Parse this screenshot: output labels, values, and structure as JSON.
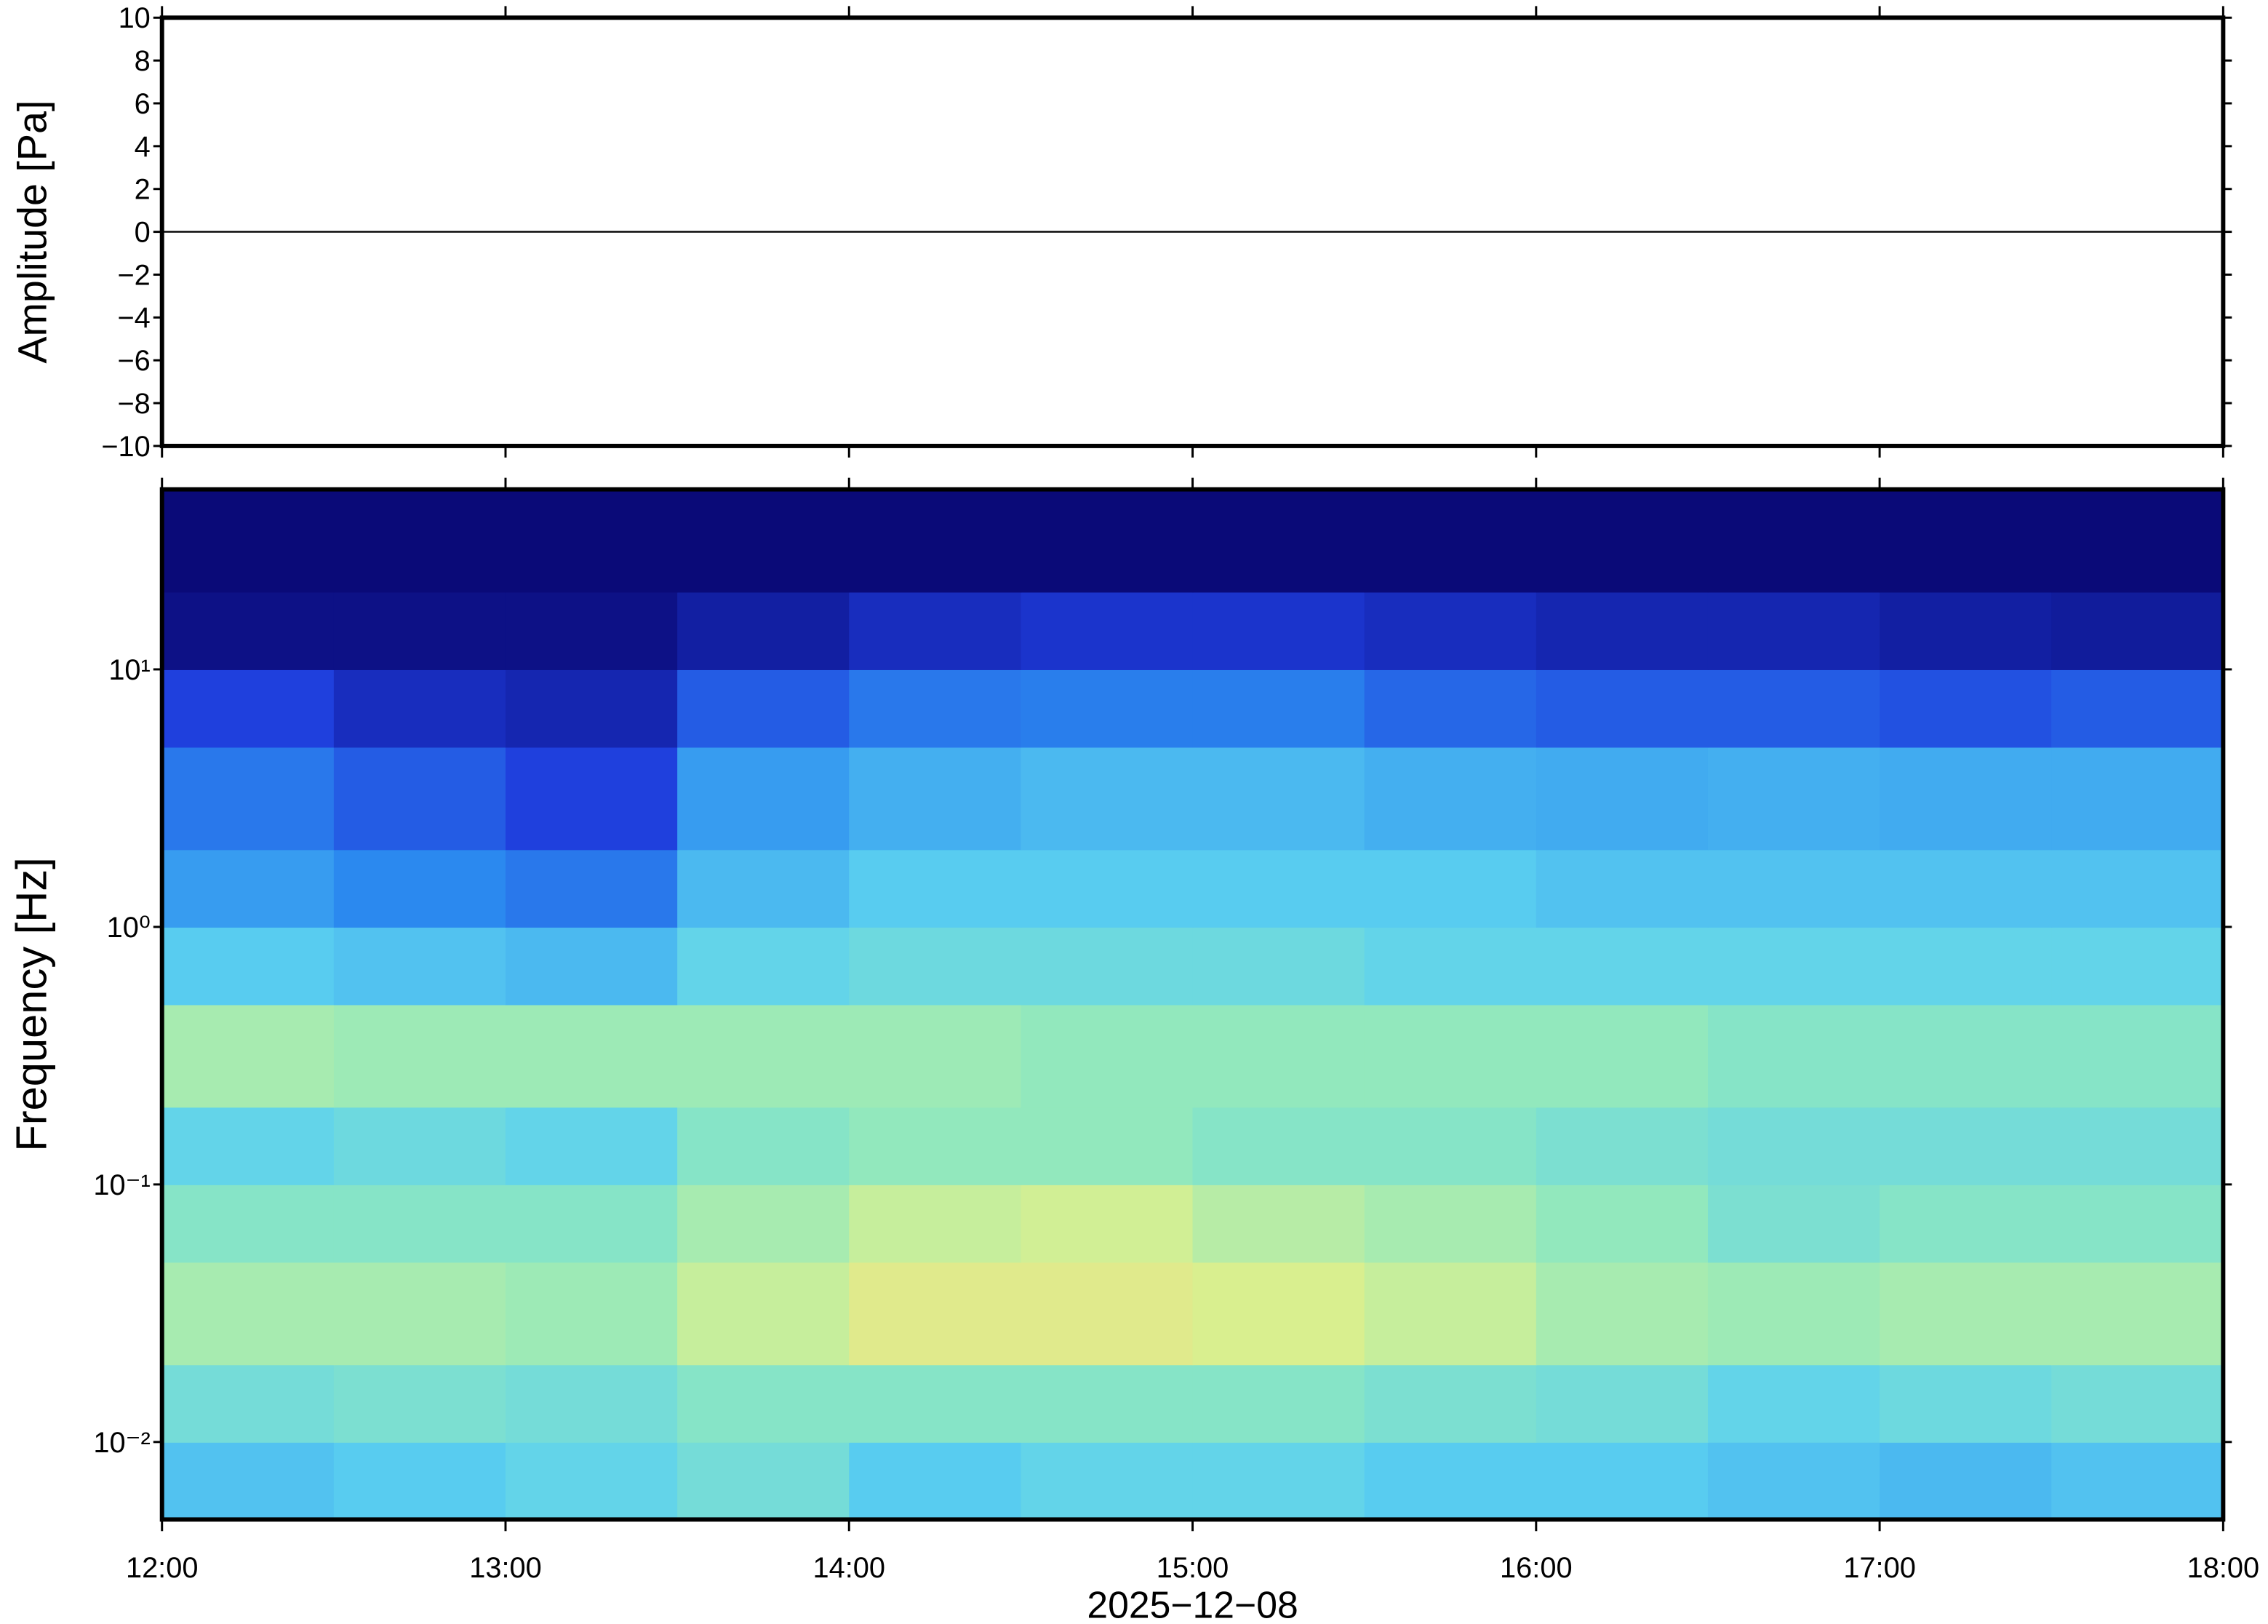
{
  "chart_data": [
    {
      "type": "line",
      "ylabel": "Amplitude [Pa]",
      "x": [
        "12:00",
        "12:30",
        "13:00",
        "13:30",
        "14:00",
        "14:30",
        "15:00",
        "15:30",
        "16:00",
        "16:30",
        "17:00",
        "17:30",
        "18:00"
      ],
      "values": [
        0,
        0,
        0,
        0,
        0,
        0,
        0,
        0,
        0,
        0,
        0,
        0,
        0
      ],
      "color": "#000000",
      "xlim": [
        "12:00",
        "18:00"
      ],
      "ylim": [
        -10,
        10
      ],
      "yticks": [
        {
          "value": -10,
          "label": "−10"
        },
        {
          "value": -8,
          "label": "−8"
        },
        {
          "value": -6,
          "label": "−6"
        },
        {
          "value": -4,
          "label": "−4"
        },
        {
          "value": -2,
          "label": "−2"
        },
        0,
        2,
        4,
        6,
        8,
        10
      ]
    },
    {
      "type": "heatmap",
      "ylabel": "Frequency [Hz]",
      "xlabel": "2025−12−08",
      "log_y": true,
      "x": [
        "12:00",
        "12:30",
        "13:00",
        "13:30",
        "14:00",
        "14:30",
        "15:00",
        "15:30",
        "16:00",
        "16:30",
        "17:00",
        "17:30",
        "18:00"
      ],
      "y": [
        0.005,
        0.01,
        0.02,
        0.05,
        0.1,
        0.2,
        0.5,
        1,
        2,
        5,
        10,
        20,
        50
      ],
      "values": [
        [
          0.4,
          0.42,
          0.45,
          0.5,
          0.42,
          0.45,
          0.45,
          0.42,
          0.42,
          0.4,
          0.38,
          0.4
        ],
        [
          0.5,
          0.52,
          0.5,
          0.55,
          0.55,
          0.55,
          0.55,
          0.52,
          0.5,
          0.45,
          0.48,
          0.5
        ],
        [
          0.62,
          0.62,
          0.6,
          0.68,
          0.75,
          0.75,
          0.72,
          0.68,
          0.62,
          0.6,
          0.62,
          0.62
        ],
        [
          0.55,
          0.55,
          0.55,
          0.62,
          0.68,
          0.7,
          0.65,
          0.62,
          0.58,
          0.52,
          0.55,
          0.55
        ],
        [
          0.45,
          0.48,
          0.45,
          0.55,
          0.58,
          0.58,
          0.55,
          0.55,
          0.52,
          0.5,
          0.5,
          0.5
        ],
        [
          0.62,
          0.6,
          0.6,
          0.6,
          0.6,
          0.58,
          0.58,
          0.58,
          0.58,
          0.55,
          0.55,
          0.55
        ],
        [
          0.42,
          0.4,
          0.38,
          0.45,
          0.48,
          0.48,
          0.48,
          0.45,
          0.45,
          0.45,
          0.45,
          0.45
        ],
        [
          0.32,
          0.28,
          0.25,
          0.38,
          0.42,
          0.42,
          0.42,
          0.42,
          0.4,
          0.4,
          0.4,
          0.4
        ],
        [
          0.25,
          0.2,
          0.15,
          0.32,
          0.36,
          0.38,
          0.38,
          0.36,
          0.35,
          0.36,
          0.35,
          0.35
        ],
        [
          0.15,
          0.1,
          0.08,
          0.2,
          0.25,
          0.26,
          0.26,
          0.22,
          0.2,
          0.2,
          0.18,
          0.2
        ],
        [
          0.02,
          0.02,
          0.02,
          0.06,
          0.1,
          0.12,
          0.12,
          0.1,
          0.08,
          0.08,
          0.06,
          0.05
        ],
        [
          0,
          0,
          0,
          0,
          0,
          0,
          0,
          0,
          0,
          0,
          0,
          0
        ]
      ],
      "colormap": [
        "#0a0a78",
        "#1e3cdc",
        "#2c8cf0",
        "#5bd0f0",
        "#8ee8c0",
        "#d8f090",
        "#f8d880",
        "#f0a060"
      ],
      "xlim": [
        "12:00",
        "18:00"
      ],
      "ylim": [
        0.005,
        50
      ],
      "xticks": [
        "12:00",
        "13:00",
        "14:00",
        "15:00",
        "16:00",
        "17:00",
        "18:00"
      ],
      "yticks": [
        {
          "value": 0.01,
          "label": "10⁻²"
        },
        {
          "value": 0.1,
          "label": "10⁻¹"
        },
        {
          "value": 1,
          "label": "10⁰"
        },
        {
          "value": 10,
          "label": "10¹"
        }
      ]
    }
  ]
}
